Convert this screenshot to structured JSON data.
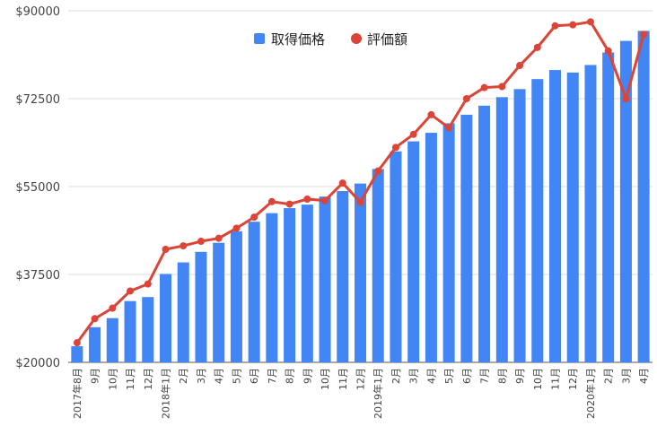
{
  "chart_data": {
    "type": "bar+line",
    "legend_position": "top",
    "grid": true,
    "y_axis": {
      "min": 20000,
      "max": 90000,
      "ticks": [
        20000,
        37500,
        55000,
        72500,
        90000
      ],
      "tick_labels": [
        "$20000",
        "$37500",
        "$55000",
        "$72500",
        "$90000"
      ]
    },
    "categories": [
      "2017年8月",
      "9月",
      "10月",
      "11月",
      "12月",
      "2018年1月",
      "2月",
      "3月",
      "4月",
      "5月",
      "6月",
      "7月",
      "8月",
      "9月",
      "10月",
      "11月",
      "12月",
      "2019年1月",
      "2月",
      "3月",
      "4月",
      "5月",
      "6月",
      "7月",
      "8月",
      "9月",
      "10月",
      "11月",
      "12月",
      "2020年1月",
      "2月",
      "3月",
      "4月"
    ],
    "series": [
      {
        "name": "取得価格",
        "type": "bar",
        "color": "#4285f4",
        "values": [
          23200,
          27000,
          28800,
          32200,
          33000,
          37600,
          39900,
          42000,
          43800,
          46100,
          48000,
          49700,
          50700,
          51400,
          53000,
          54100,
          55600,
          58500,
          62000,
          64000,
          65700,
          67600,
          69300,
          71100,
          72800,
          74400,
          76400,
          78200,
          77700,
          79200,
          81700,
          84000,
          86000
        ]
      },
      {
        "name": "評価額",
        "type": "line",
        "color": "#db4437",
        "values": [
          23900,
          28700,
          30800,
          34200,
          35600,
          42500,
          43200,
          44100,
          44700,
          46700,
          48900,
          52000,
          51500,
          52500,
          52200,
          55700,
          51900,
          58100,
          62800,
          65400,
          69300,
          66700,
          72500,
          74700,
          74900,
          79100,
          82700,
          87000,
          87200,
          87800,
          82000,
          72500,
          85300
        ]
      }
    ]
  }
}
